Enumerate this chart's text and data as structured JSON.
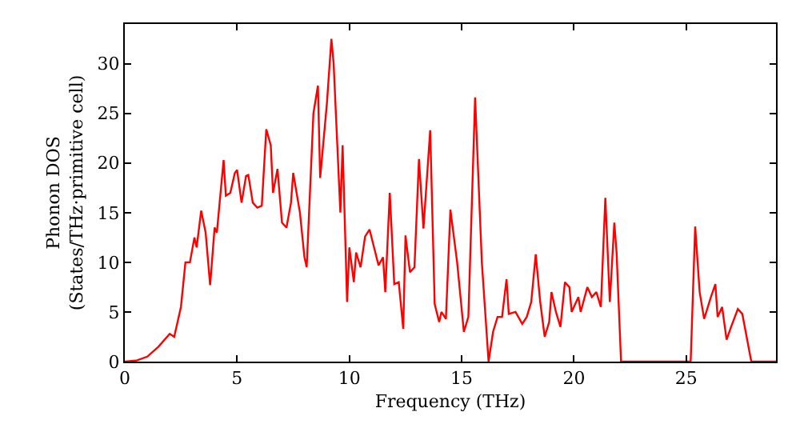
{
  "chart_data": {
    "type": "line",
    "xlabel": "Frequency (THz)",
    "ylabel": "Phonon DOS\n(States/THz·primitive cell)",
    "xlim": [
      0,
      29
    ],
    "ylim": [
      0,
      34
    ],
    "xticks": [
      0,
      5,
      10,
      15,
      20,
      25
    ],
    "yticks": [
      0,
      5,
      10,
      15,
      20,
      25,
      30
    ],
    "marker": "none",
    "line_style": "solid",
    "series": [
      {
        "color": "#ff0000",
        "x": [
          0,
          0.5,
          1,
          1.5,
          2,
          2.2,
          2.5,
          2.7,
          2.9,
          3.1,
          3.2,
          3.4,
          3.6,
          3.8,
          4.0,
          4.1,
          4.4,
          4.5,
          4.7,
          4.9,
          5.0,
          5.2,
          5.4,
          5.5,
          5.7,
          5.9,
          6.1,
          6.3,
          6.5,
          6.6,
          6.8,
          7.0,
          7.2,
          7.4,
          7.5,
          7.8,
          8.0,
          8.1,
          8.4,
          8.6,
          8.7,
          9.0,
          9.2,
          9.3,
          9.6,
          9.7,
          9.9,
          10.0,
          10.2,
          10.3,
          10.5,
          10.7,
          10.9,
          11.1,
          11.3,
          11.5,
          11.6,
          11.8,
          12.0,
          12.2,
          12.4,
          12.5,
          12.7,
          12.9,
          13.1,
          13.3,
          13.6,
          13.8,
          14.0,
          14.1,
          14.3,
          14.5,
          14.8,
          15.1,
          15.3,
          15.6,
          15.9,
          16.2,
          16.4,
          16.6,
          16.8,
          17.0,
          17.1,
          17.4,
          17.7,
          17.9,
          18.1,
          18.3,
          18.5,
          18.7,
          18.9,
          19.0,
          19.2,
          19.4,
          19.6,
          19.8,
          19.9,
          20.2,
          20.3,
          20.6,
          20.8,
          21.0,
          21.2,
          21.4,
          21.6,
          21.8,
          21.9,
          22.1,
          25.2,
          25.4,
          25.6,
          25.8,
          26.1,
          26.3,
          26.4,
          26.6,
          26.8,
          27.0,
          27.3,
          27.5,
          27.9,
          29
        ],
        "values": [
          0,
          0.1,
          0.5,
          1.5,
          2.8,
          2.5,
          5.5,
          10,
          10,
          12.5,
          11.5,
          15.2,
          13,
          7.7,
          13.5,
          13,
          20.3,
          16.7,
          17,
          19,
          19.3,
          16,
          18.7,
          18.8,
          16,
          15.5,
          15.7,
          23.4,
          21.8,
          17,
          19.4,
          14,
          13.5,
          16,
          19,
          15,
          10.5,
          9.5,
          25,
          27.8,
          18.5,
          26,
          32.5,
          30,
          15,
          21.8,
          6,
          11.5,
          8,
          11,
          9.5,
          12.6,
          13.3,
          11.5,
          9.7,
          10.5,
          7,
          17,
          7.8,
          8,
          3.3,
          12.7,
          9,
          9.5,
          20.4,
          13.4,
          23.3,
          5.8,
          4,
          5,
          4.3,
          15.3,
          10,
          3,
          4.5,
          26.6,
          10,
          0,
          3,
          4.5,
          4.5,
          8.3,
          4.8,
          5,
          3.8,
          4.5,
          6,
          10.8,
          6,
          2.5,
          4,
          7,
          5,
          3.5,
          8,
          7.5,
          5,
          6.5,
          5,
          7.5,
          6.5,
          7,
          5.5,
          16.5,
          6,
          14,
          11,
          0,
          0,
          13.6,
          7,
          4.3,
          6.5,
          7.8,
          4.5,
          5.5,
          2.2,
          3.5,
          5.3,
          4.8,
          0,
          0
        ]
      }
    ]
  }
}
